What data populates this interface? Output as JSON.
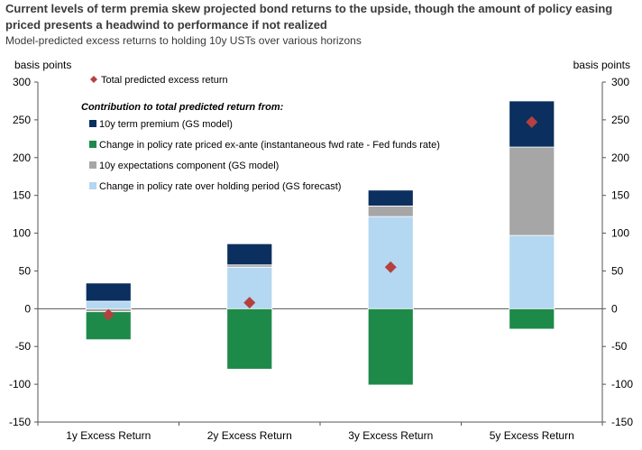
{
  "title": "Current levels of term premia skew projected bond returns to the upside, though the amount of policy easing priced presents a headwind to performance if not realized",
  "subtitle": "Model-predicted excess returns to holding 10y USTs over various horizons",
  "chart_data": {
    "type": "bar",
    "stacked": true,
    "ylabel_left": "basis points",
    "ylabel_right": "basis points",
    "ylim": [
      -150,
      300
    ],
    "yticks": [
      -150,
      -100,
      -50,
      0,
      50,
      100,
      150,
      200,
      250,
      300
    ],
    "categories": [
      "1y Excess Return",
      "2y Excess Return",
      "3y Excess Return",
      "5y Excess Return"
    ],
    "legend_heading": "Contribution to total predicted return from:",
    "series": [
      {
        "name": "Change in policy rate over holding period (GS forecast)",
        "color": "#b4d7f2",
        "values": [
          10,
          55,
          122,
          97
        ]
      },
      {
        "name": "10y expectations component (GS model)",
        "color": "#a6a6a6",
        "values": [
          -4,
          3,
          14,
          117
        ]
      },
      {
        "name": "Change in policy rate priced ex-ante (instantaneous fwd rate - Fed funds rate)",
        "color": "#1e8a4a",
        "values": [
          -37,
          -80,
          -101,
          -27
        ]
      },
      {
        "name": "10y term premium (GS model)",
        "color": "#0b2f5e",
        "values": [
          24,
          28,
          21,
          61
        ]
      }
    ],
    "markers": {
      "name": "Total predicted excess return",
      "color": "#b5413e",
      "values": [
        -8,
        8,
        55,
        247
      ]
    }
  }
}
